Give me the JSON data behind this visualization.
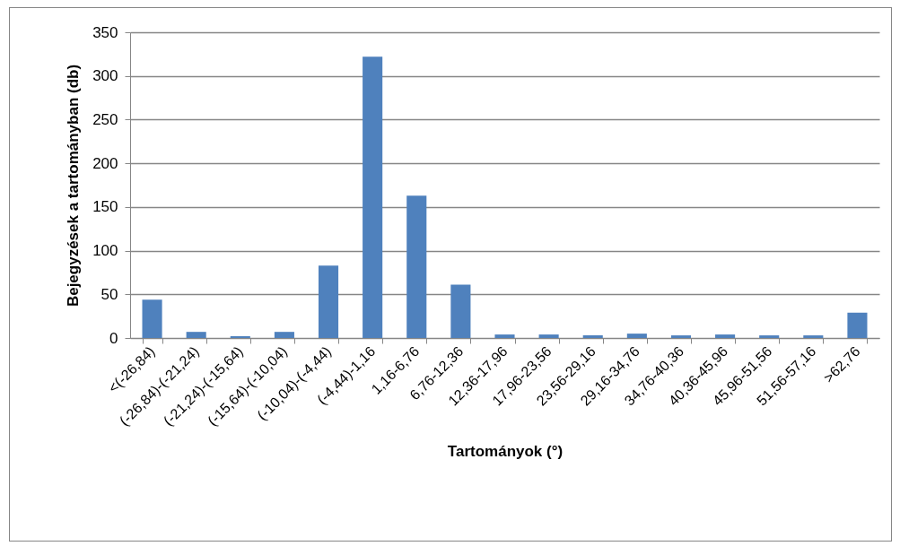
{
  "chart_data": {
    "type": "bar",
    "xlabel": "Tartományok (°)",
    "ylabel": "Bejegyzések a tartományban (db)",
    "categories": [
      "<(-26,84)",
      "(-26,84)-(-21,24)",
      "(-21,24)-(-15,64)",
      "(-15,64)-(-10,04)",
      "(-10,04)-(-4,44)",
      "(-4,44)-1,16",
      "1,16-6,76",
      "6,76-12,36",
      "12,36-17,96",
      "17,96-23,56",
      "23,56-29,16",
      "29,16-34,76",
      "34,76-40,36",
      "40,36-45,96",
      "45,96-51,56",
      "51,56-57,16",
      ">62,76"
    ],
    "values": [
      44,
      7,
      2,
      7,
      83,
      322,
      163,
      61,
      4,
      4,
      3,
      5,
      3,
      4,
      3,
      3,
      29
    ],
    "color": "#4f81bd",
    "ylim": [
      0,
      350
    ],
    "yticks": [
      0,
      50,
      100,
      150,
      200,
      250,
      300,
      350
    ],
    "grid": "y"
  }
}
